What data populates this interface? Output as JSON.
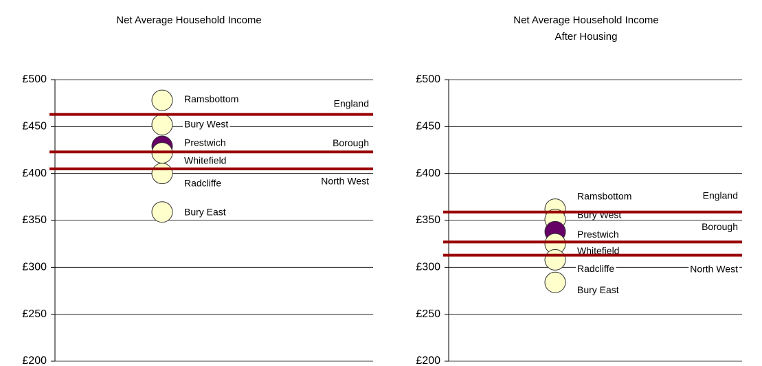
{
  "chart_data": [
    {
      "type": "dot",
      "title": "Net Average Household Income",
      "ylim": [
        200,
        500
      ],
      "yticks": [
        {
          "value": 200,
          "label": "£200"
        },
        {
          "value": 250,
          "label": "£250"
        },
        {
          "value": 300,
          "label": "£300"
        },
        {
          "value": 350,
          "label": "£350"
        },
        {
          "value": 400,
          "label": "£400"
        },
        {
          "value": 450,
          "label": "£450"
        },
        {
          "value": 500,
          "label": "£500"
        }
      ],
      "grid": true,
      "points": [
        {
          "name": "Ramsbottom",
          "value": 478,
          "color": "#ffffcc"
        },
        {
          "name": "Bury West",
          "value": 452,
          "color": "#ffffcc"
        },
        {
          "name": "Prestwich",
          "value": 429,
          "color": "#660066"
        },
        {
          "name": "Whitefield",
          "value": 422,
          "color": "#ffffcc"
        },
        {
          "name": "Radcliffe",
          "value": 400,
          "color": "#ffffcc"
        },
        {
          "name": "Bury East",
          "value": 359,
          "color": "#ffffcc"
        }
      ],
      "reference_lines": [
        {
          "name": "England",
          "value": 463,
          "color": "#990000"
        },
        {
          "name": "Borough",
          "value": 423,
          "color": "#990000"
        },
        {
          "name": "North West",
          "value": 405,
          "color": "#990000"
        }
      ]
    },
    {
      "type": "dot",
      "title": "Net Average Household Income",
      "subtitle": "After Housing",
      "ylim": [
        200,
        500
      ],
      "yticks": [
        {
          "value": 200,
          "label": "£200"
        },
        {
          "value": 250,
          "label": "£250"
        },
        {
          "value": 300,
          "label": "£300"
        },
        {
          "value": 350,
          "label": "£350"
        },
        {
          "value": 400,
          "label": "£400"
        },
        {
          "value": 450,
          "label": "£450"
        },
        {
          "value": 500,
          "label": "£500"
        }
      ],
      "grid": true,
      "points": [
        {
          "name": "Ramsbottom",
          "value": 362,
          "color": "#ffffcc"
        },
        {
          "name": "Bury West",
          "value": 351,
          "color": "#ffffcc"
        },
        {
          "name": "Prestwich",
          "value": 338,
          "color": "#660066"
        },
        {
          "name": "Whitefield",
          "value": 325,
          "color": "#ffffcc"
        },
        {
          "name": "Radcliffe",
          "value": 308,
          "color": "#ffffcc"
        },
        {
          "name": "Bury East",
          "value": 284,
          "color": "#ffffcc"
        }
      ],
      "reference_lines": [
        {
          "name": "England",
          "value": 359,
          "color": "#990000"
        },
        {
          "name": "Borough",
          "value": 327,
          "color": "#990000"
        },
        {
          "name": "North West",
          "value": 313,
          "color": "#990000"
        }
      ]
    }
  ]
}
